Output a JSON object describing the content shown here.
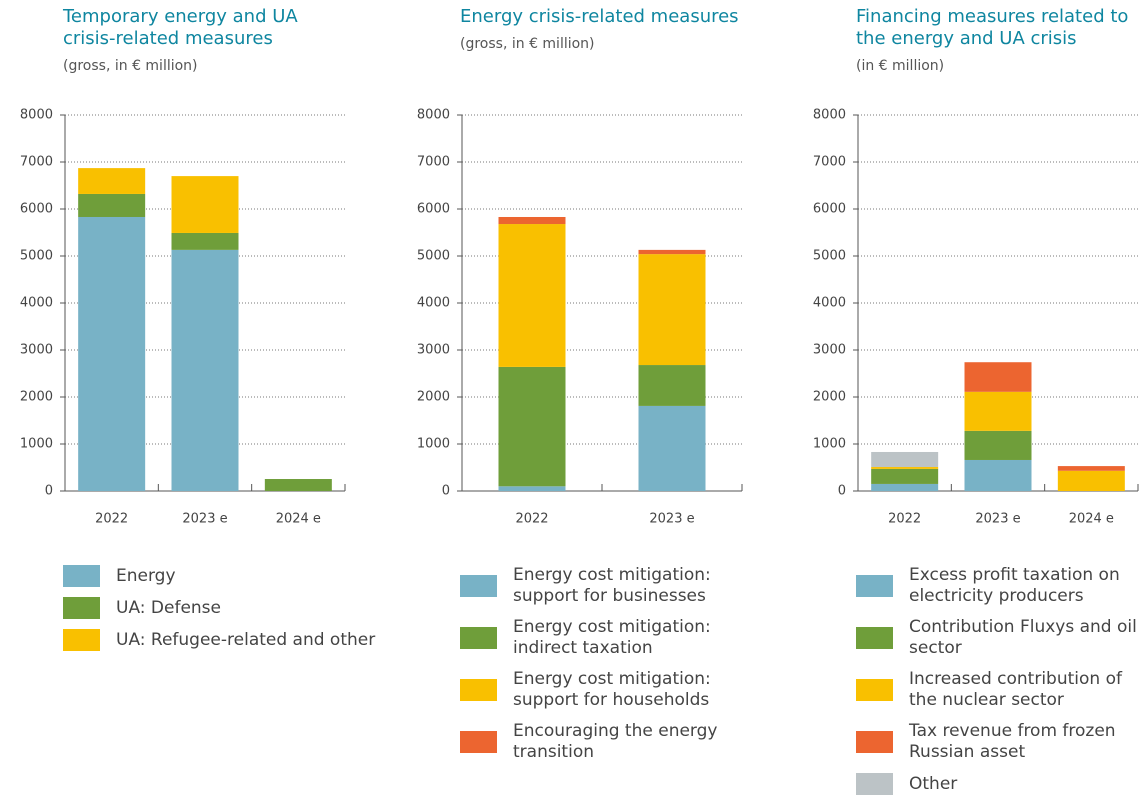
{
  "chart_data": [
    {
      "type": "bar",
      "stacked": true,
      "title": "Temporary energy and UA crisis-related measures",
      "subtitle": "(gross, in € million)",
      "categories": [
        "2022",
        "2023 e",
        "2024 e"
      ],
      "series": [
        {
          "name": "Energy",
          "color": "#78b2c6",
          "values": [
            5830,
            5130,
            0
          ]
        },
        {
          "name": "UA: Defense",
          "color": "#6f9e3a",
          "values": [
            490,
            360,
            255
          ]
        },
        {
          "name": "UA: Refugee-related and other",
          "color": "#f9c000",
          "values": [
            550,
            1210,
            0
          ]
        }
      ],
      "ylim": [
        0,
        8000
      ],
      "yticks": [
        0,
        1000,
        2000,
        3000,
        4000,
        5000,
        6000,
        7000,
        8000
      ],
      "grid": true
    },
    {
      "type": "bar",
      "stacked": true,
      "title": "Energy crisis-related measures",
      "subtitle": "(gross, in € million)",
      "categories": [
        "2022",
        "2023 e"
      ],
      "series": [
        {
          "name": "Energy cost mitigation: support for businesses",
          "color": "#78b2c6",
          "values": [
            100,
            1810
          ]
        },
        {
          "name": "Energy cost mitigation: indirect taxation",
          "color": "#6f9e3a",
          "values": [
            2540,
            870
          ]
        },
        {
          "name": "Energy cost mitigation: support for households",
          "color": "#f9c000",
          "values": [
            3040,
            2360
          ]
        },
        {
          "name": "Encouraging the energy transition",
          "color": "#ec6530",
          "values": [
            150,
            90
          ]
        }
      ],
      "ylim": [
        0,
        8000
      ],
      "yticks": [
        0,
        1000,
        2000,
        3000,
        4000,
        5000,
        6000,
        7000,
        8000
      ],
      "grid": true
    },
    {
      "type": "bar",
      "stacked": true,
      "title": "Financing measures related to the energy and UA crisis",
      "subtitle": "(in € million)",
      "categories": [
        "2022",
        "2023 e",
        "2024 e"
      ],
      "series": [
        {
          "name": "Excess profit taxation on electricity producers",
          "color": "#78b2c6",
          "values": [
            150,
            660,
            0
          ]
        },
        {
          "name": "Contribution Fluxys and oil sector",
          "color": "#6f9e3a",
          "values": [
            320,
            620,
            0
          ]
        },
        {
          "name": "Increased contribution of the nuclear sector",
          "color": "#f9c000",
          "values": [
            40,
            830,
            430
          ]
        },
        {
          "name": "Tax revenue from frozen Russian asset",
          "color": "#ec6530",
          "values": [
            0,
            630,
            100
          ]
        },
        {
          "name": "Other",
          "color": "#bcc3c6",
          "values": [
            320,
            0,
            0
          ]
        }
      ],
      "ylim": [
        0,
        8000
      ],
      "yticks": [
        0,
        1000,
        2000,
        3000,
        4000,
        5000,
        6000,
        7000,
        8000
      ],
      "grid": true
    }
  ]
}
